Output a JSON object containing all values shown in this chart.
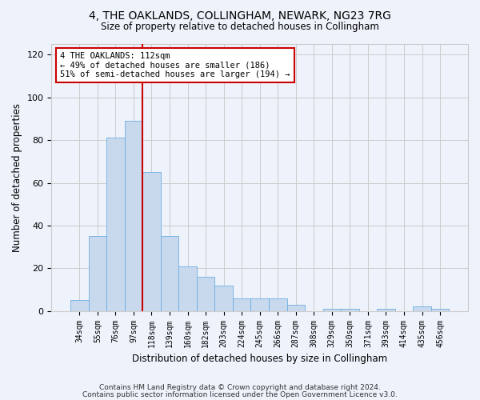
{
  "title1": "4, THE OAKLANDS, COLLINGHAM, NEWARK, NG23 7RG",
  "title2": "Size of property relative to detached houses in Collingham",
  "xlabel": "Distribution of detached houses by size in Collingham",
  "ylabel": "Number of detached properties",
  "bar_labels": [
    "34sqm",
    "55sqm",
    "76sqm",
    "97sqm",
    "118sqm",
    "139sqm",
    "160sqm",
    "182sqm",
    "203sqm",
    "224sqm",
    "245sqm",
    "266sqm",
    "287sqm",
    "308sqm",
    "329sqm",
    "350sqm",
    "371sqm",
    "393sqm",
    "414sqm",
    "435sqm",
    "456sqm"
  ],
  "bar_values": [
    5,
    35,
    81,
    89,
    65,
    35,
    21,
    16,
    12,
    6,
    6,
    6,
    3,
    0,
    1,
    1,
    0,
    1,
    0,
    2,
    1
  ],
  "bar_color": "#c8d9ee",
  "bar_edge_color": "#6aaee0",
  "vline_color": "#cc0000",
  "annotation_text": "4 THE OAKLANDS: 112sqm\n← 49% of detached houses are smaller (186)\n51% of semi-detached houses are larger (194) →",
  "annotation_box_color": "#ffffff",
  "annotation_box_edge": "#cc0000",
  "ylim": [
    0,
    125
  ],
  "yticks": [
    0,
    20,
    40,
    60,
    80,
    100,
    120
  ],
  "grid_color": "#cccccc",
  "background_color": "#eef2fb",
  "footer1": "Contains HM Land Registry data © Crown copyright and database right 2024.",
  "footer2": "Contains public sector information licensed under the Open Government Licence v3.0."
}
